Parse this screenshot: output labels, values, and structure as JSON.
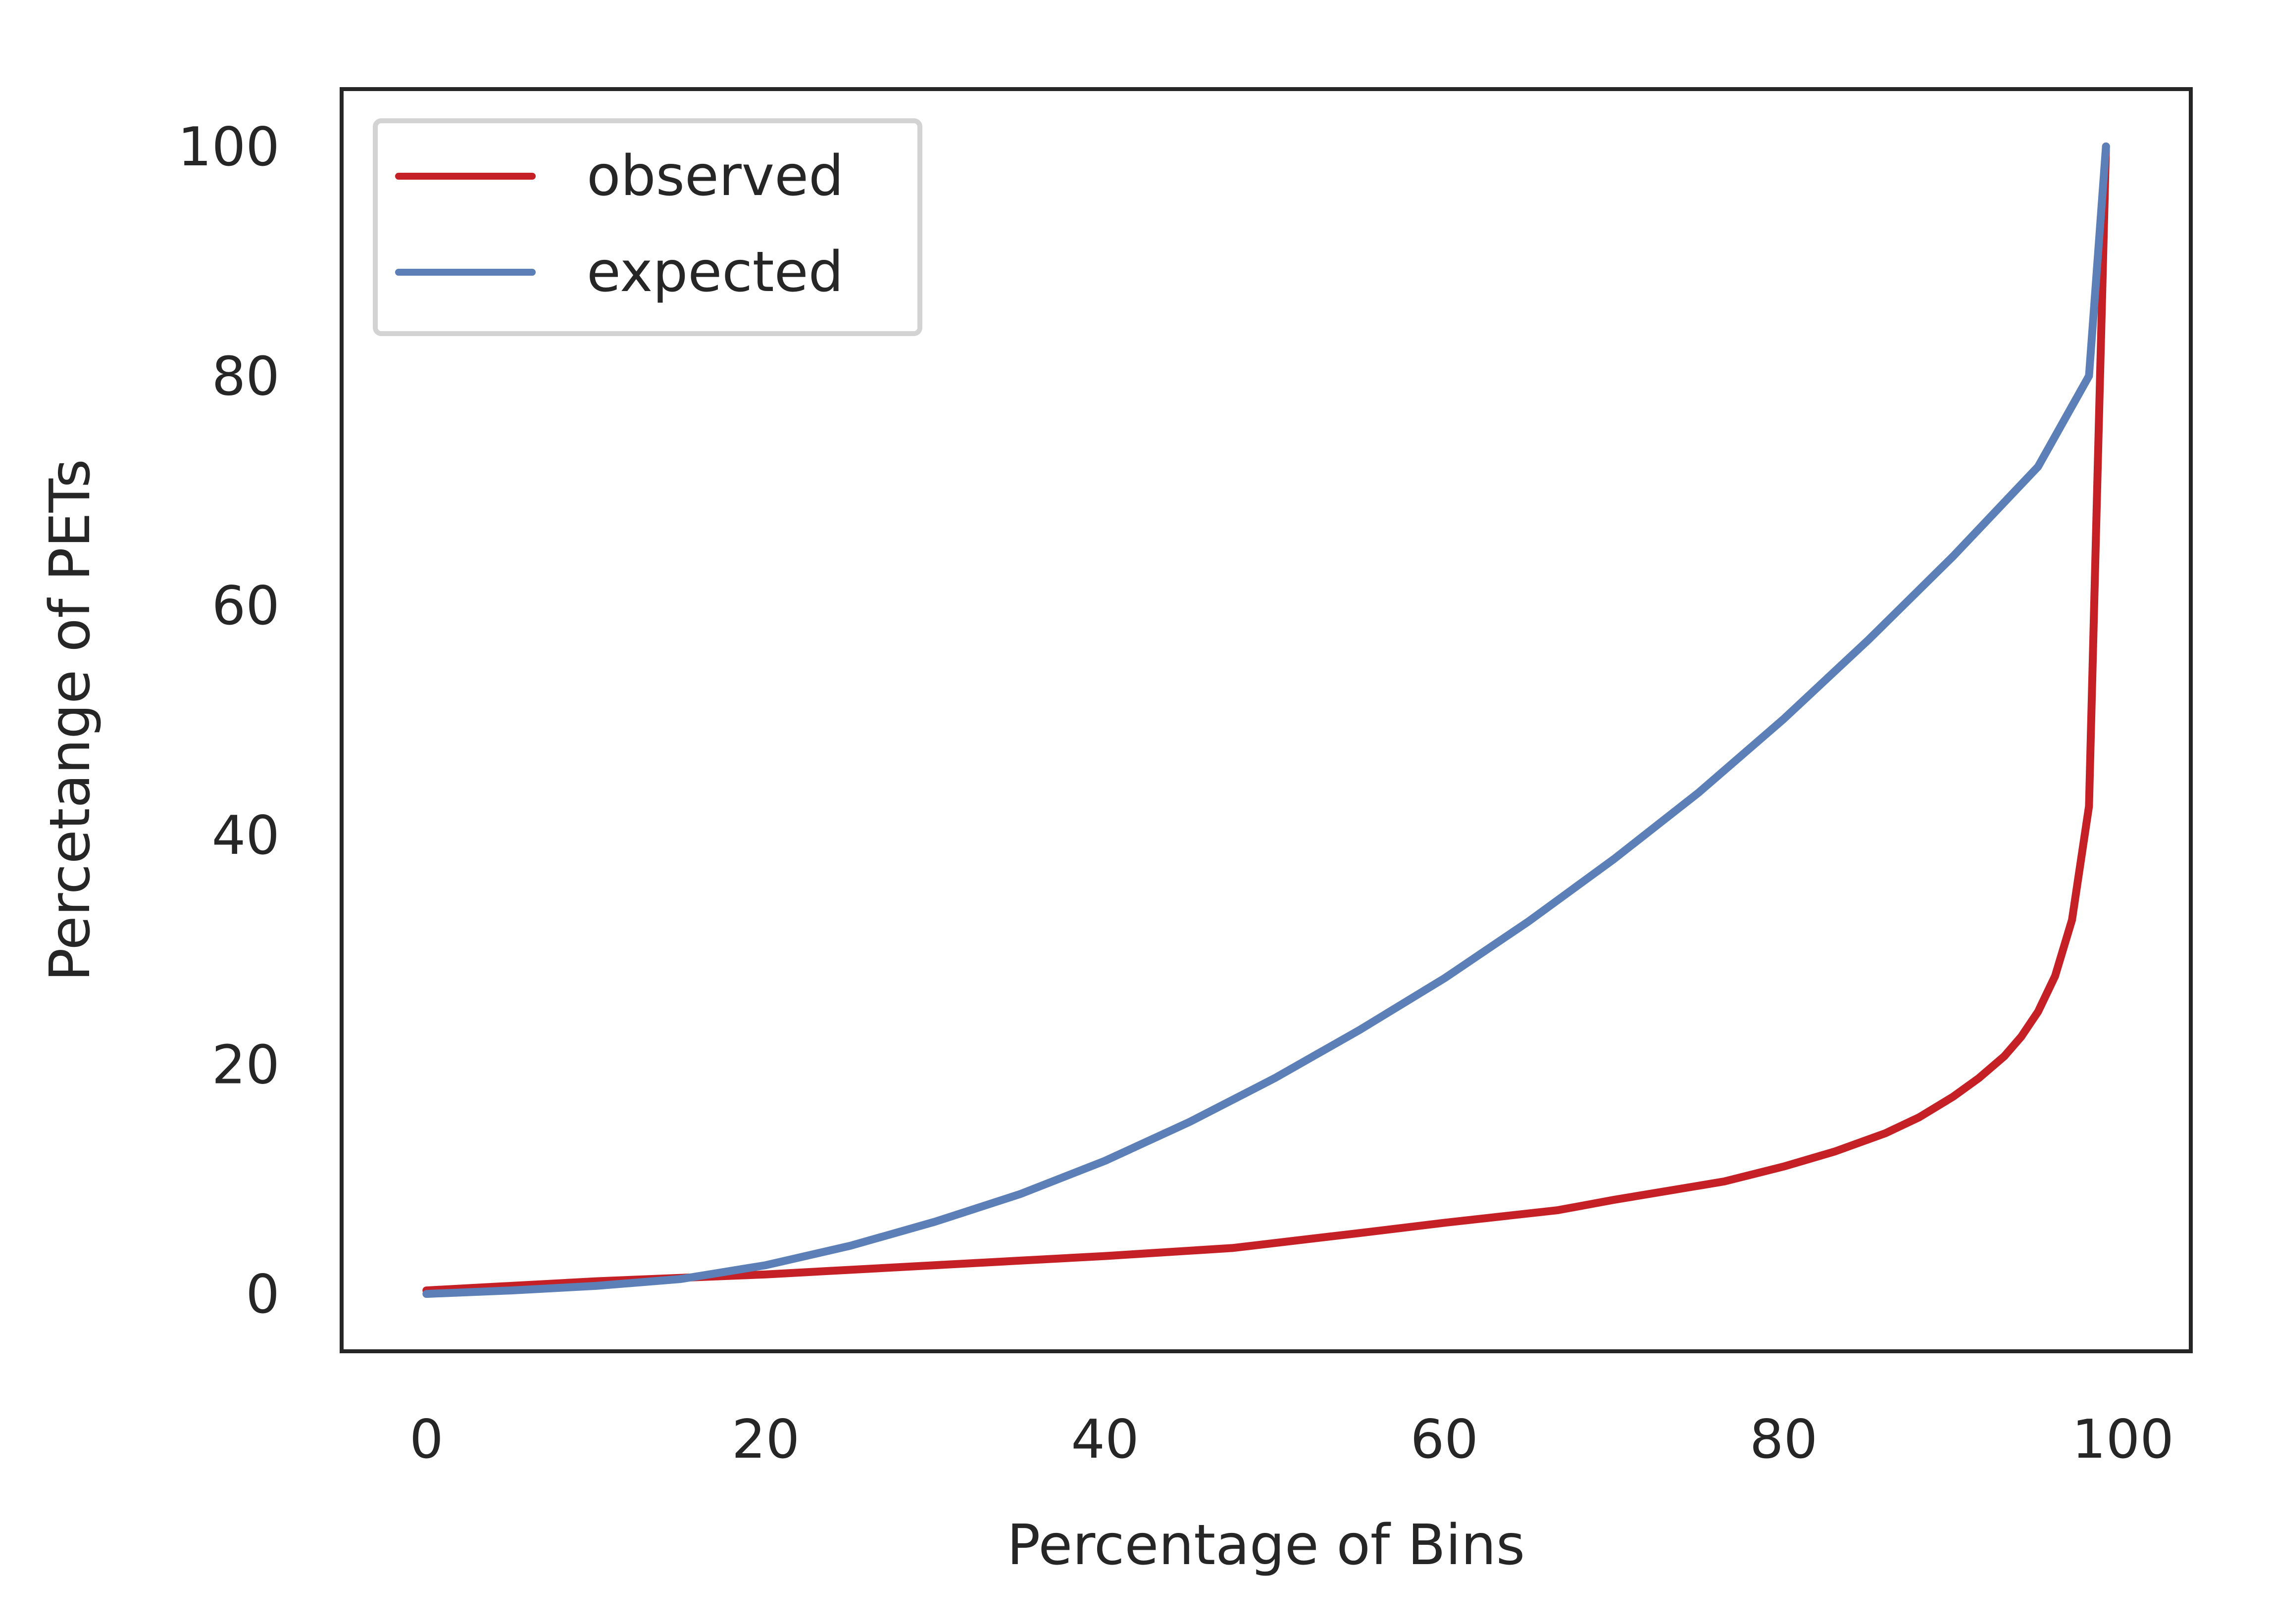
{
  "chart_data": {
    "type": "line",
    "title": "",
    "xlabel": "Percentage of Bins",
    "ylabel": "Percetange of PETs",
    "xlim": [
      -5,
      104
    ],
    "ylim": [
      -5,
      105
    ],
    "xticks": [
      0,
      20,
      40,
      60,
      80,
      100
    ],
    "yticks": [
      0,
      20,
      40,
      60,
      80,
      100
    ],
    "grid": false,
    "legend": {
      "position": "upper-left"
    },
    "series": [
      {
        "name": "observed",
        "color": "#c42026",
        "x": [
          0,
          10,
          20,
          30,
          40,
          47.5,
          55,
          60,
          66.7,
          70,
          76.5,
          80,
          83,
          86,
          88,
          90,
          91.5,
          93,
          94,
          95,
          96,
          97,
          98,
          99
        ],
        "y": [
          0.3,
          1.1,
          1.7,
          2.5,
          3.3,
          4.0,
          5.3,
          6.2,
          7.3,
          8.2,
          9.8,
          11.1,
          12.4,
          14.0,
          15.4,
          17.2,
          18.8,
          20.7,
          22.4,
          24.6,
          27.7,
          32.6,
          42.5,
          100
        ]
      },
      {
        "name": "expected",
        "color": "#5b7fb6",
        "x": [
          0,
          5,
          10,
          15,
          20,
          25,
          30,
          35,
          40,
          45,
          50,
          55,
          60,
          65,
          70,
          75,
          80,
          85,
          90,
          95,
          98,
          99
        ],
        "y": [
          0,
          0.3,
          0.7,
          1.3,
          2.5,
          4.2,
          6.3,
          8.7,
          11.6,
          15.0,
          18.8,
          23.0,
          27.5,
          32.5,
          37.9,
          43.7,
          50.1,
          57.0,
          64.3,
          72.1,
          80.0,
          100
        ]
      }
    ]
  }
}
